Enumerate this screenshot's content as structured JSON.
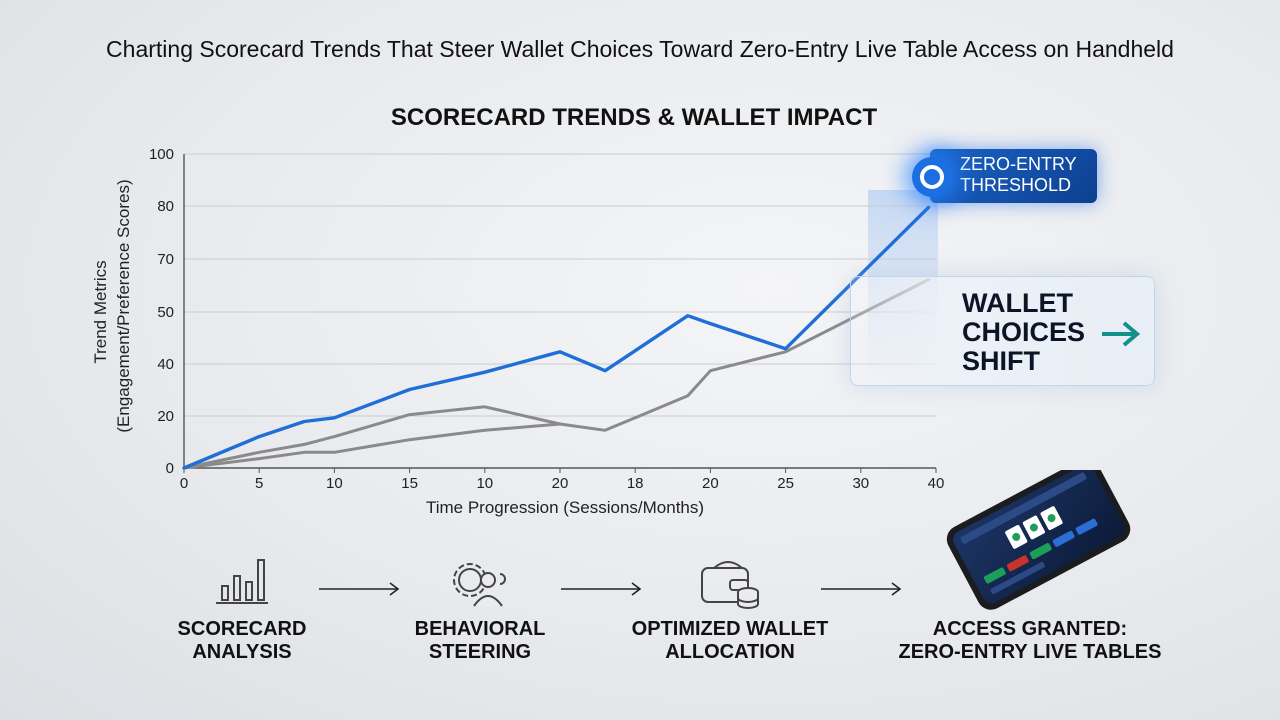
{
  "page_title": "Charting Scorecard Trends That Steer Wallet Choices Toward Zero-Entry Live Table Access on Handheld",
  "chart_data": {
    "type": "line",
    "title": "SCORECARD TRENDS & WALLET IMPACT",
    "xlabel": "Time Progression (Sessions/Months)",
    "ylabel_lines": [
      "Trend Metrics",
      "(Engagement/Preference Scores)"
    ],
    "x_tick_labels": [
      "0",
      "5",
      "10",
      "15",
      "10",
      "20",
      "18",
      "20",
      "25",
      "30",
      "40"
    ],
    "y_tick_labels": [
      "0",
      "20",
      "40",
      "50",
      "70",
      "80",
      "100"
    ],
    "grid": true,
    "series": [
      {
        "color": "#1f6fd6",
        "x_index": [
          0,
          1,
          1.6,
          2,
          3,
          4,
          5,
          5.6,
          6.7,
          7,
          8,
          9.9
        ],
        "y": [
          0,
          10,
          14.8,
          16,
          25,
          30.5,
          37,
          31,
          48.5,
          46,
          38,
          83
        ]
      },
      {
        "color": "#8a8a8a",
        "x_index": [
          0,
          1,
          1.6,
          2,
          3,
          4,
          5,
          5.6,
          6.7,
          7,
          8,
          9.9
        ],
        "y": [
          0,
          5,
          7.5,
          10,
          17,
          19.5,
          14,
          12,
          23,
          31,
          37,
          60
        ]
      },
      {
        "color": "#8a8a8a",
        "x_index": [
          0,
          1,
          1.6,
          2,
          3,
          4,
          5
        ],
        "y": [
          0,
          3,
          5,
          5,
          9,
          12,
          14
        ]
      }
    ]
  },
  "callouts": {
    "threshold_lines": [
      "ZERO-ENTRY",
      "THRESHOLD"
    ],
    "wallet_lines": [
      "WALLET",
      "CHOICES",
      "SHIFT"
    ]
  },
  "flow": [
    {
      "icon": "bar-chart-icon",
      "lines": [
        "SCORECARD",
        "ANALYSIS"
      ]
    },
    {
      "icon": "gear-users-icon",
      "lines": [
        "BEHAVIORAL",
        "STEERING"
      ]
    },
    {
      "icon": "wallet-coins-icon",
      "lines": [
        "OPTIMIZED WALLET",
        "ALLOCATION"
      ]
    },
    {
      "icon": "smartphone-icon",
      "lines": [
        "ACCESS GRANTED:",
        "ZERO-ENTRY LIVE TABLES"
      ]
    }
  ],
  "colors": {
    "accent": "#1f6fd6",
    "secondary": "#8a8a8a",
    "callout": "#0d3f8f",
    "arrow": "#14908c"
  }
}
